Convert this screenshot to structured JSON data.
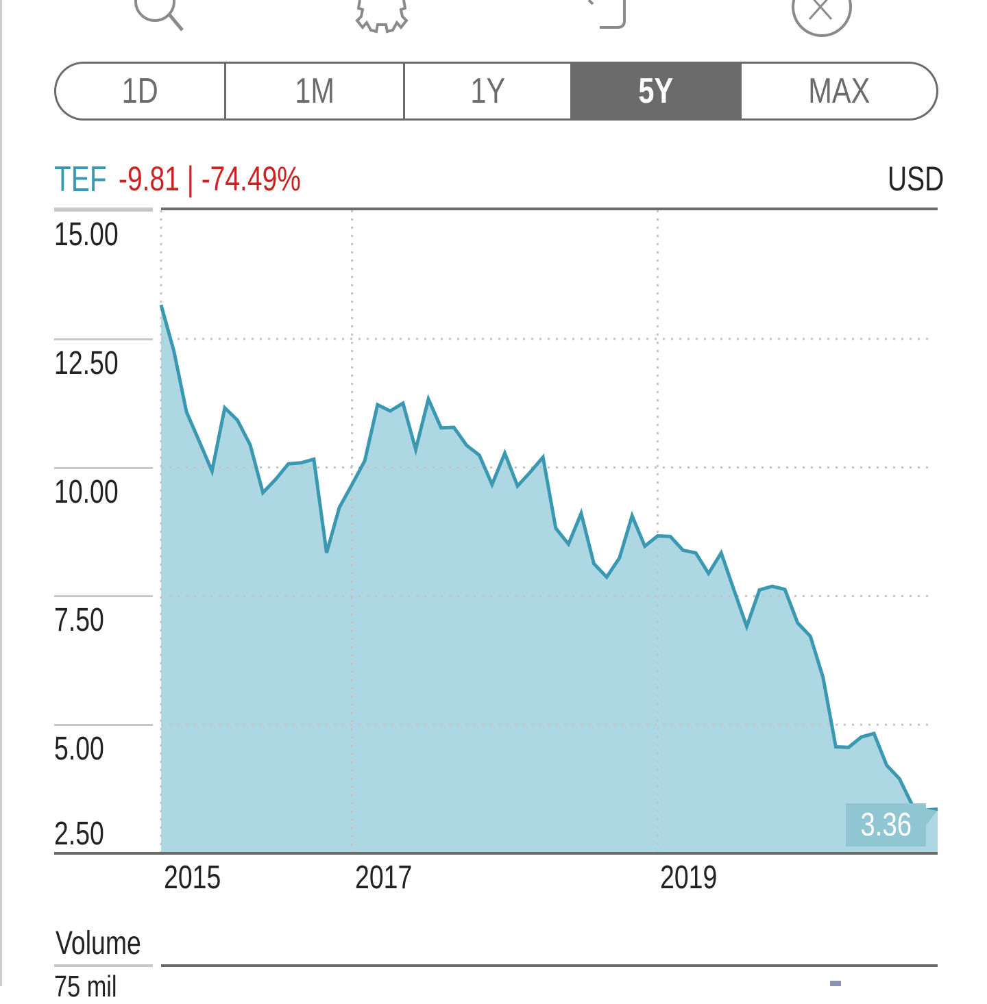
{
  "toolbar": {
    "icons": [
      "search-icon",
      "gear-icon",
      "share-icon",
      "close-icon"
    ]
  },
  "ranges": [
    {
      "label": "1D",
      "active": false
    },
    {
      "label": "1M",
      "active": false
    },
    {
      "label": "1Y",
      "active": false
    },
    {
      "label": "5Y",
      "active": true
    },
    {
      "label": "MAX",
      "active": false
    }
  ],
  "quote": {
    "ticker": "TEF",
    "change": "-9.81 | -74.49%",
    "currency": "USD",
    "last_price": "3.36"
  },
  "colors": {
    "accent": "#3a98b0",
    "fill": "#add8e3",
    "negative": "#cc2222",
    "tag": "#8fc6d2",
    "axis": "#6b6b6b"
  },
  "volume": {
    "label": "Volume",
    "first_tick": "75 mil"
  },
  "chart_data": {
    "type": "area",
    "y_ticks": [
      "15.00",
      "12.50",
      "10.00",
      "7.50",
      "5.00",
      "2.50"
    ],
    "ylim": [
      2.5,
      15
    ],
    "x_ticks": [
      {
        "label": "2015",
        "x": "2015-10"
      },
      {
        "label": "2017",
        "x": "2017-01"
      },
      {
        "label": "2019",
        "x": "2019-01"
      }
    ],
    "grid": true,
    "x": [
      "2015-10",
      "2015-11",
      "2015-12",
      "2016-01",
      "2016-02",
      "2016-03",
      "2016-04",
      "2016-05",
      "2016-06",
      "2016-07",
      "2016-08",
      "2016-09",
      "2016-10",
      "2016-11",
      "2016-12",
      "2017-01",
      "2017-02",
      "2017-03",
      "2017-04",
      "2017-05",
      "2017-06",
      "2017-07",
      "2017-08",
      "2017-09",
      "2017-10",
      "2017-11",
      "2017-12",
      "2018-01",
      "2018-02",
      "2018-03",
      "2018-04",
      "2018-05",
      "2018-06",
      "2018-07",
      "2018-08",
      "2018-09",
      "2018-10",
      "2018-11",
      "2018-12",
      "2019-01",
      "2019-02",
      "2019-03",
      "2019-04",
      "2019-05",
      "2019-06",
      "2019-07",
      "2019-08",
      "2019-09",
      "2019-10",
      "2019-11",
      "2019-12",
      "2020-01",
      "2020-02",
      "2020-03",
      "2020-04",
      "2020-05",
      "2020-06",
      "2020-07",
      "2020-08",
      "2020-09",
      "2020-10",
      "2020-11"
    ],
    "values": [
      13.16,
      12.27,
      11.08,
      10.51,
      9.93,
      11.16,
      10.92,
      10.44,
      9.51,
      9.77,
      10.07,
      10.09,
      10.16,
      8.34,
      9.22,
      9.67,
      10.13,
      11.22,
      11.1,
      11.25,
      10.35,
      11.33,
      10.77,
      10.78,
      10.43,
      10.24,
      9.67,
      10.28,
      9.64,
      9.91,
      10.2,
      8.82,
      8.51,
      9.11,
      8.13,
      7.87,
      8.24,
      9.06,
      8.47,
      8.67,
      8.66,
      8.39,
      8.34,
      7.94,
      8.34,
      7.62,
      6.91,
      7.62,
      7.69,
      7.63,
      6.98,
      6.72,
      5.92,
      4.57,
      4.56,
      4.76,
      4.83,
      4.21,
      3.95,
      3.44,
      3.34,
      3.36
    ]
  }
}
